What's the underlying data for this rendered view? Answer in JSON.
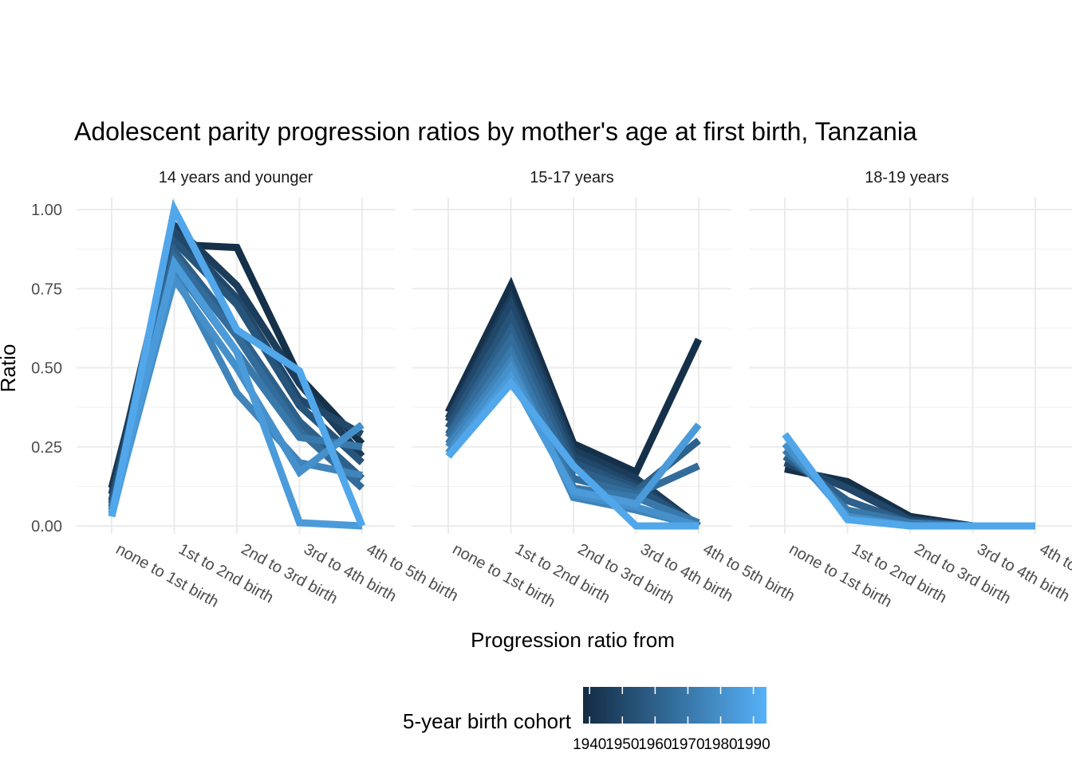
{
  "chart_data": {
    "type": "line",
    "title": "Adolescent parity progression ratios by mother's age at first birth,  Tanzania",
    "xlabel": "Progression ratio from",
    "ylabel": "Ratio",
    "categories": [
      "none to 1st birth",
      "1st to 2nd birth",
      "2nd to 3rd birth",
      "3rd to 4th birth",
      "4th to 5th birth"
    ],
    "ylim": [
      0,
      1
    ],
    "yticks": [
      0,
      0.25,
      0.5,
      0.75,
      1.0
    ],
    "ytick_labels": [
      "0.00",
      "0.25",
      "0.50",
      "0.75",
      "1.00"
    ],
    "grid": true,
    "legend": {
      "title": "5-year birth cohort",
      "placement": "bottom",
      "type": "colorbar",
      "range": [
        1938,
        1994
      ],
      "ticks": [
        1940,
        1950,
        1960,
        1970,
        1980,
        1990
      ],
      "colors": [
        "#132b43",
        "#56b1f7"
      ]
    },
    "panels": [
      {
        "label": "14 years and younger",
        "series": [
          {
            "cohort": 1940,
            "values": [
              0.12,
              0.89,
              0.88,
              0.47,
              0.26
            ]
          },
          {
            "cohort": 1945,
            "values": [
              0.1,
              0.95,
              0.76,
              0.45,
              0.22
            ]
          },
          {
            "cohort": 1950,
            "values": [
              0.08,
              0.93,
              0.72,
              0.4,
              0.29
            ]
          },
          {
            "cohort": 1955,
            "values": [
              0.07,
              0.9,
              0.7,
              0.38,
              0.2
            ]
          },
          {
            "cohort": 1960,
            "values": [
              0.06,
              0.87,
              0.62,
              0.33,
              0.15
            ]
          },
          {
            "cohort": 1965,
            "values": [
              0.05,
              0.85,
              0.6,
              0.3,
              0.12
            ]
          },
          {
            "cohort": 1970,
            "values": [
              0.05,
              0.82,
              0.55,
              0.28,
              0.25
            ]
          },
          {
            "cohort": 1975,
            "values": [
              0.04,
              0.8,
              0.42,
              0.2,
              0.16
            ]
          },
          {
            "cohort": 1980,
            "values": [
              0.04,
              0.78,
              0.5,
              0.17,
              0.32
            ]
          },
          {
            "cohort": 1985,
            "values": [
              0.03,
              0.83,
              0.55,
              0.01,
              0.0
            ]
          },
          {
            "cohort": 1990,
            "values": [
              0.03,
              1.0,
              0.62,
              0.49,
              0.0
            ]
          }
        ]
      },
      {
        "label": "15-17 years",
        "series": [
          {
            "cohort": 1940,
            "values": [
              0.36,
              0.76,
              0.26,
              0.17,
              0.59
            ]
          },
          {
            "cohort": 1945,
            "values": [
              0.34,
              0.72,
              0.24,
              0.15,
              0.0
            ]
          },
          {
            "cohort": 1950,
            "values": [
              0.33,
              0.7,
              0.22,
              0.13,
              0.0
            ]
          },
          {
            "cohort": 1955,
            "values": [
              0.31,
              0.66,
              0.2,
              0.12,
              0.0
            ]
          },
          {
            "cohort": 1960,
            "values": [
              0.29,
              0.62,
              0.18,
              0.11,
              0.27
            ]
          },
          {
            "cohort": 1965,
            "values": [
              0.28,
              0.59,
              0.15,
              0.1,
              0.19
            ]
          },
          {
            "cohort": 1970,
            "values": [
              0.26,
              0.55,
              0.12,
              0.09,
              0.01
            ]
          },
          {
            "cohort": 1975,
            "values": [
              0.25,
              0.52,
              0.09,
              0.05,
              0.0
            ]
          },
          {
            "cohort": 1980,
            "values": [
              0.23,
              0.5,
              0.1,
              0.06,
              0.0
            ]
          },
          {
            "cohort": 1985,
            "values": [
              0.22,
              0.47,
              0.11,
              0.07,
              0.32
            ]
          },
          {
            "cohort": 1990,
            "values": [
              0.22,
              0.45,
              0.19,
              0.0,
              0.0
            ]
          }
        ]
      },
      {
        "label": "18-19 years",
        "series": [
          {
            "cohort": 1940,
            "values": [
              0.18,
              0.14,
              0.03,
              0.0,
              0.0
            ]
          },
          {
            "cohort": 1950,
            "values": [
              0.2,
              0.12,
              0.02,
              0.0,
              0.0
            ]
          },
          {
            "cohort": 1960,
            "values": [
              0.22,
              0.08,
              0.01,
              0.0,
              0.0
            ]
          },
          {
            "cohort": 1970,
            "values": [
              0.24,
              0.05,
              0.01,
              0.0,
              0.0
            ]
          },
          {
            "cohort": 1980,
            "values": [
              0.26,
              0.03,
              0.0,
              0.0,
              0.0
            ]
          },
          {
            "cohort": 1990,
            "values": [
              0.29,
              0.02,
              0.0,
              0.0,
              0.0
            ]
          }
        ]
      }
    ]
  }
}
